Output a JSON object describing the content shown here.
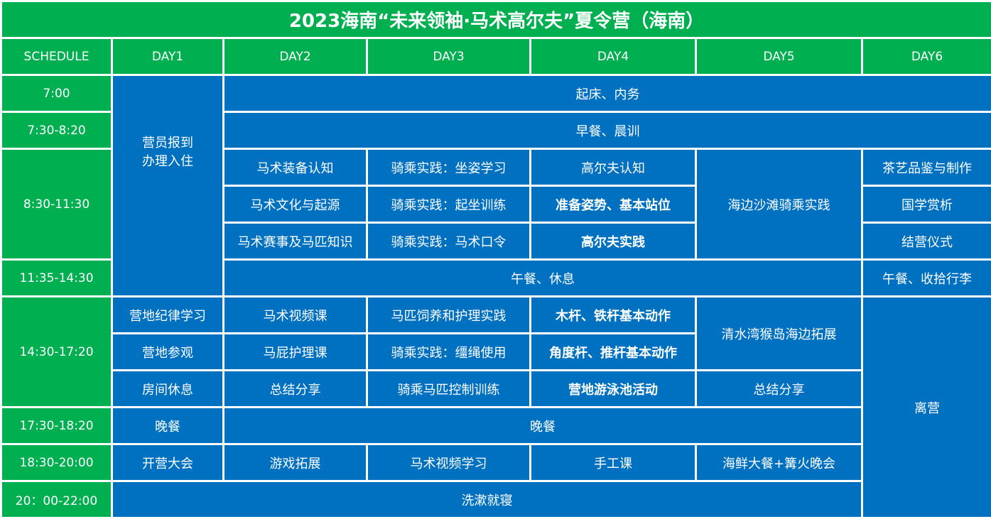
{
  "title": "2023海南“未来领袖·马术高尔夫”夏令营（海南）",
  "headers": [
    "SCHEDULE",
    "DAY1",
    "DAY2",
    "DAY3",
    "DAY4",
    "DAY5",
    "DAY6"
  ],
  "times": [
    "7:00",
    "7:30-8:20",
    "8:30-11:30",
    "11:35-14:30",
    "14:30-17:20",
    "17:30-18:20",
    "18:30-20:00",
    "20：00-22:00"
  ],
  "colors": {
    "header": "#00b050",
    "body": "#0070c0"
  },
  "cells": {
    "wake": "起床、内务",
    "breakfast": "早餐、晨训",
    "day1_checkin": "营员报到\n办理入住",
    "morning": {
      "day2": [
        "马术装备认知",
        "马术文化与起源",
        "马术赛事及马匹知识"
      ],
      "day3": [
        "骑乘实践：坐姿学习",
        "骑乘实践：起坐训练",
        "骑乘实践：马术口令"
      ],
      "day4": [
        "高尔夫认知",
        "准备姿势、基本站位",
        "高尔夫实践"
      ],
      "day5": "海边沙滩骑乘实践",
      "day6": [
        "茶艺品鉴与制作",
        "国学赏析",
        "结营仪式"
      ]
    },
    "lunch": "午餐、休息",
    "lunch_day6": "午餐、收拾行李",
    "afternoon": {
      "day1": [
        "营地纪律学习",
        "营地参观",
        "房间休息"
      ],
      "day2": [
        "马术视频课",
        "马屁护理课",
        "总结分享"
      ],
      "day3": [
        "马匹饲养和护理实践",
        "骑乘实践：缰绳使用",
        "骑乘马匹控制训练"
      ],
      "day4": [
        "木杆、铁杆基本动作",
        "角度杆、推杆基本动作",
        "营地游泳池活动"
      ],
      "day5": [
        "清水湾猴岛海边拓展",
        "总结分享"
      ]
    },
    "day6_leave": "离营",
    "dinner_day1": "晚餐",
    "dinner": "晚餐",
    "evening": [
      "开营大会",
      "游戏拓展",
      "马术视频学习",
      "手工课",
      "海鲜大餐+篝火晚会"
    ],
    "bedtime": "洗漱就寝"
  }
}
